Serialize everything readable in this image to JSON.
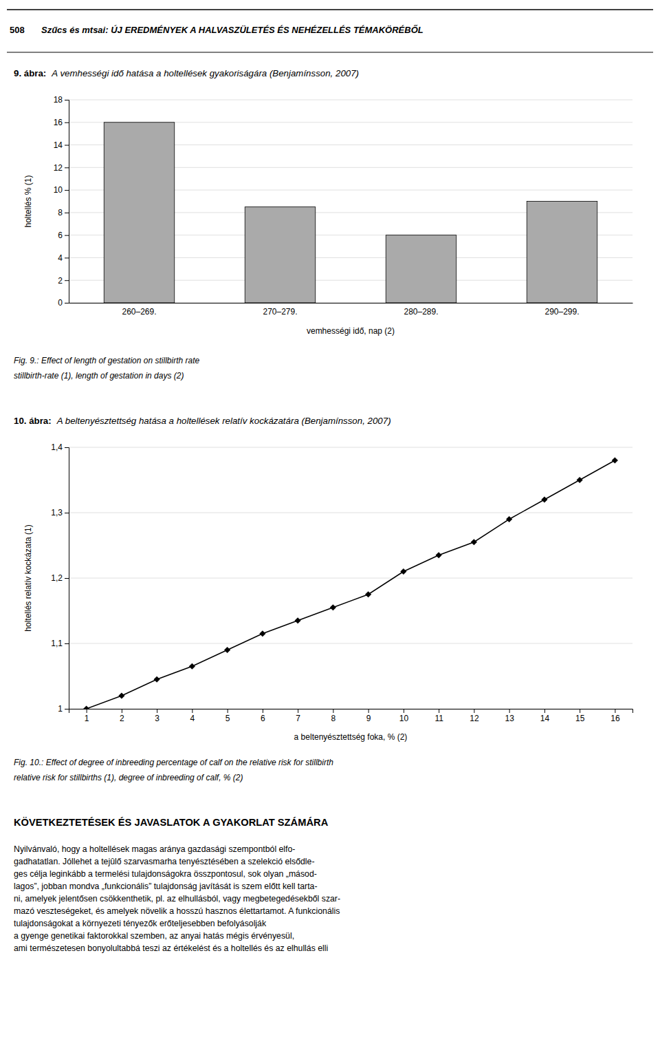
{
  "header": [
    "508",
    "Szűcs és mtsai: ÚJ EREDMÉNYEK A HALVASZÜLETÉS ÉS NEHÉZELLÉS TÉMAKÖRÉBŐL"
  ],
  "chart_data": [
    {
      "type": "bar",
      "title": "9. ábra:",
      "subtitle": "A vemhességi idő hatása a holtellések gyakoriságára (Benjamínsson, 2007)",
      "categories": [
        "260–269.",
        "270–279.",
        "280–289.",
        "290–299."
      ],
      "values": [
        16.0,
        8.5,
        6.0,
        9.0
      ],
      "color": "#aaaaaa",
      "ylabel": "holtellés % (1)",
      "xlabel": "vemhességi idő, nap (2)",
      "ylim": [
        0,
        18
      ],
      "yticks": [
        0,
        2,
        4,
        6,
        8,
        10,
        12,
        14,
        16,
        18
      ],
      "grid": true,
      "annotations": [
        "Fig. 9.: Effect of length of gestation on stillbirth rate",
        "stillbirth-rate (1), length of gestation in days (2)"
      ]
    },
    {
      "type": "line",
      "title": "10. ábra:",
      "subtitle": "A beltenyésztettség hatása a holtellések relatív kockázatára (Benjamínsson, 2007)",
      "x": [
        1,
        2,
        3,
        4,
        5,
        6,
        7,
        8,
        9,
        10,
        11,
        12,
        13,
        14,
        15,
        16
      ],
      "values": [
        1.0,
        1.02,
        1.045,
        1.065,
        1.09,
        1.115,
        1.135,
        1.155,
        1.175,
        1.21,
        1.235,
        1.255,
        1.29,
        1.32,
        1.35,
        1.38
      ],
      "color": "black",
      "marker": "diamond",
      "ylabel": "holtellés relatív kockázata (1)",
      "xlabel": "a beltenyésztettség foka, % (2)",
      "xlim": [
        0.5,
        16.5
      ],
      "xticks": [
        1,
        2,
        3,
        4,
        5,
        6,
        7,
        8,
        9,
        10,
        11,
        12,
        13,
        14,
        15,
        16
      ],
      "ylim": [
        1.0,
        1.4
      ],
      "yticks": [
        1,
        {
          "value": 1.1,
          "label": "1,1"
        },
        {
          "value": 1.2,
          "label": "1,2"
        },
        {
          "value": 1.3,
          "label": "1,3"
        },
        {
          "value": 1.4,
          "label": "1,4"
        }
      ],
      "grid": true,
      "annotations": [
        "Fig. 10.: Effect of degree of inbreeding percentage of calf on the relative risk for stillbirth",
        "relative risk for stillbirths (1), degree of inbreeding of calf, % (2)"
      ]
    }
  ],
  "section_title": "KÖVETKEZTETÉSEK ÉS JAVASLATOK A GYAKORLAT SZÁMÁRA",
  "body_lines": [
    "Nyilvánvaló, hogy a holtellések magas aránya gazdasági szempontból elfo-",
    "gadhatatlan. Jóllehet a tejûlő szarvasmarha tenyésztésében a szelekció elsődle-",
    "ges célja leginkább a termelési tulajdonságokra összpontosul, sok olyan „másod-",
    "lagos”, jobban mondva „funkcionális” tulajdonság javítását is szem előtt kell tarta-",
    "ni, amelyek jelentősen csökkenthetik, pl. az elhullásból, vagy megbetegedésekből szar-",
    "mazó veszteségeket, és amelyek növelik a hosszú hasznos élettartamot. A funkcionális",
    "tulajdonságokat a környezeti tényezők erőteljesebben befolyásolják",
    "a gyenge genetikai faktorokkal szemben, az anyai hatás mégis érvényesül,",
    "ami természetesen bonyolultabbá teszi az értékelést és a holtellés és az elhullás elli"
  ]
}
